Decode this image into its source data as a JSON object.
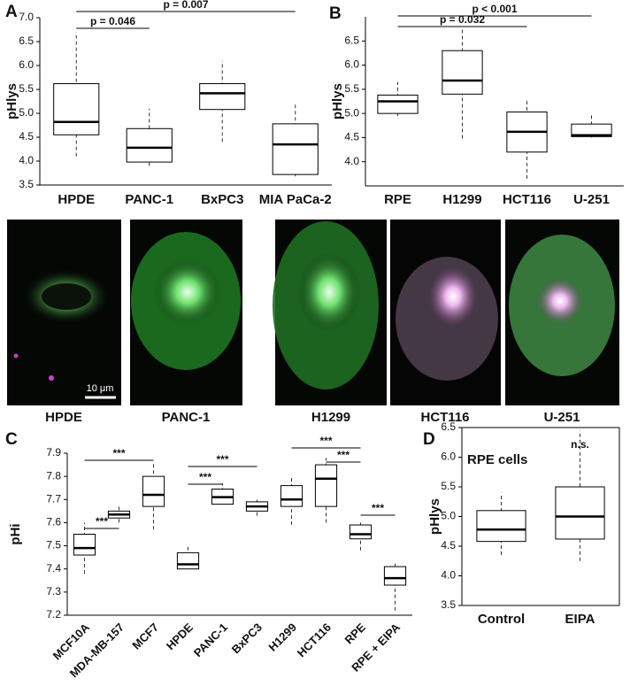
{
  "panel_labels": [
    "A",
    "B",
    "C",
    "D"
  ],
  "micrographs": {
    "labels": [
      "HPDE",
      "PANC-1",
      "H1299",
      "HCT116",
      "U-251"
    ],
    "scale_bar": "10 μm"
  },
  "chart_data": [
    {
      "type": "box",
      "ylabel": "pHlys",
      "categories": [
        "HPDE",
        "PANC-1",
        "BxPC3",
        "MIA PaCa-2"
      ],
      "ylim": [
        3.5,
        7.0
      ],
      "yticks": [
        3.5,
        {
          "value": 4,
          "label": "4.0"
        },
        4.5,
        {
          "value": 5,
          "label": "5.0"
        },
        5.5,
        {
          "value": 6,
          "label": "6.0"
        },
        6.5,
        {
          "value": 7,
          "label": "7.0"
        }
      ],
      "stats": {
        "whisker_low": [
          4.1,
          3.9,
          4.4,
          3.68
        ],
        "q1": [
          4.55,
          3.98,
          5.08,
          3.72
        ],
        "median": [
          4.82,
          4.28,
          5.42,
          4.35
        ],
        "q3": [
          5.62,
          4.68,
          5.62,
          4.78
        ],
        "whisker_high": [
          6.7,
          5.1,
          6.1,
          5.22
        ]
      },
      "annotations": [
        "p = 0.046",
        "p = 0.007"
      ]
    },
    {
      "type": "box",
      "ylabel": "pHlys",
      "categories": [
        "RPE",
        "H1299",
        "HCT116",
        "U-251"
      ],
      "ylim": [
        3.5,
        7.0
      ],
      "yticks": [
        {
          "value": 4,
          "label": "4.0"
        },
        4.5,
        {
          "value": 5,
          "label": "5.0"
        },
        5.5,
        {
          "value": 6,
          "label": "6.0"
        },
        6.5
      ],
      "stats": {
        "whisker_low": [
          4.95,
          4.48,
          3.65,
          4.5
        ],
        "q1": [
          5.0,
          5.4,
          4.2,
          4.52
        ],
        "median": [
          5.25,
          5.68,
          4.62,
          4.55
        ],
        "q3": [
          5.38,
          6.3,
          5.03,
          4.78
        ],
        "whisker_high": [
          5.65,
          6.75,
          5.3,
          5.0
        ]
      },
      "annotations": [
        "p = 0.032",
        "p < 0.001"
      ]
    },
    {
      "type": "box",
      "ylabel": "pHi",
      "categories": [
        "MCF10A",
        "MDA-MB-157",
        "MCF7",
        "HPDE",
        "PANC-1",
        "BxPC3",
        "H1299",
        "HCT116",
        "RPE",
        "RPE + EIPA"
      ],
      "ylim": [
        7.2,
        7.9
      ],
      "yticks": [
        7.2,
        7.3,
        7.4,
        7.5,
        7.6,
        7.7,
        7.8,
        7.9
      ],
      "stats": {
        "whisker_low": [
          7.38,
          7.6,
          7.57,
          7.4,
          7.68,
          7.63,
          7.59,
          7.6,
          7.48,
          7.22
        ],
        "q1": [
          7.46,
          7.62,
          7.67,
          7.4,
          7.68,
          7.65,
          7.67,
          7.67,
          7.53,
          7.33
        ],
        "median": [
          7.49,
          7.635,
          7.72,
          7.42,
          7.71,
          7.67,
          7.7,
          7.79,
          7.55,
          7.36
        ],
        "q3": [
          7.55,
          7.65,
          7.8,
          7.47,
          7.745,
          7.69,
          7.76,
          7.85,
          7.59,
          7.41
        ],
        "whisker_high": [
          7.6,
          7.67,
          7.86,
          7.5,
          7.77,
          7.7,
          7.8,
          7.88,
          7.6,
          7.43
        ]
      },
      "annotations": [
        "***",
        "***",
        "***",
        "***",
        "***",
        "***",
        "***"
      ]
    },
    {
      "type": "box",
      "ylabel": "pHlys",
      "title": "RPE cells",
      "categories": [
        "Control",
        "EIPA"
      ],
      "ylim": [
        3.5,
        6.5
      ],
      "yticks": [
        3.5,
        {
          "value": 4,
          "label": "4.0"
        },
        4.5,
        {
          "value": 5,
          "label": "5.0"
        },
        5.5,
        {
          "value": 6,
          "label": "6.0"
        },
        6.5
      ],
      "stats": {
        "whisker_low": [
          4.35,
          4.25
        ],
        "q1": [
          4.58,
          4.62
        ],
        "median": [
          4.78,
          5.0
        ],
        "q3": [
          5.1,
          5.5
        ],
        "whisker_high": [
          5.4,
          6.45
        ]
      },
      "annotations": [
        "n.s."
      ]
    }
  ]
}
